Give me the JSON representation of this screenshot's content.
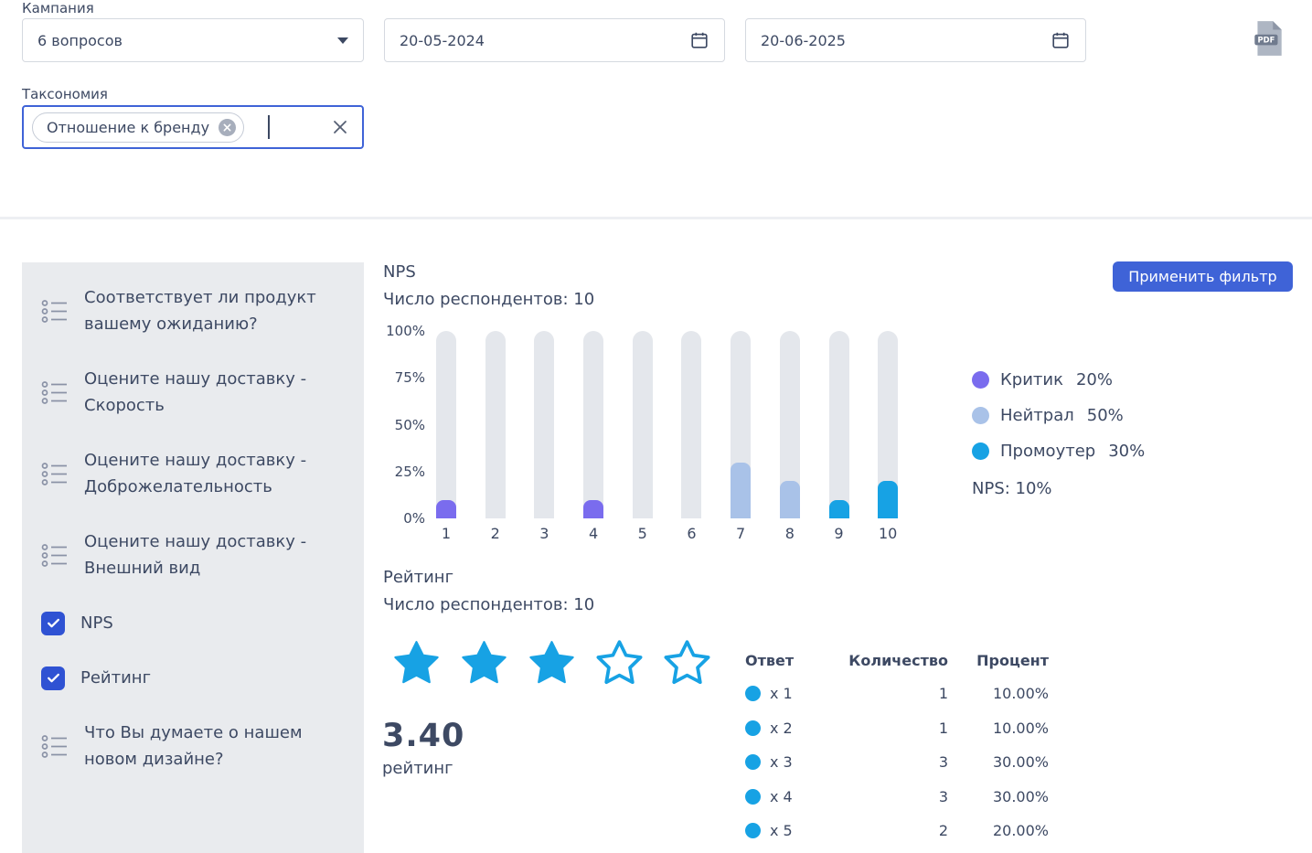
{
  "filters": {
    "campaign": {
      "label": "Кампания",
      "value": "6 вопросов"
    },
    "date_from": {
      "value": "20-05-2024"
    },
    "date_to": {
      "value": "20-06-2025"
    },
    "taxonomy": {
      "label": "Таксономия",
      "chip": "Отношение к бренду"
    }
  },
  "actions": {
    "apply_filter": "Применить фильтр"
  },
  "sidebar": {
    "items": [
      {
        "label": "Соответствует ли продукт вашему ожиданию?",
        "type": "list"
      },
      {
        "label": "Оцените нашу доставку - Скорость",
        "type": "list"
      },
      {
        "label": "Оцените нашу доставку - Доброжелательность",
        "type": "list"
      },
      {
        "label": "Оцените нашу доставку - Внешний вид",
        "type": "list"
      },
      {
        "label": "NPS",
        "type": "checkbox",
        "checked": true
      },
      {
        "label": "Рейтинг",
        "type": "checkbox",
        "checked": true
      },
      {
        "label": "Что Вы думаете о нашем новом дизайне?",
        "type": "list"
      }
    ]
  },
  "nps": {
    "title": "NPS",
    "respondents": "Число респондентов: 10",
    "legend": [
      {
        "label": "Критик",
        "value": "20%",
        "segment": "critic"
      },
      {
        "label": "Нейтрал",
        "value": "50%",
        "segment": "neutral"
      },
      {
        "label": "Промоутер",
        "value": "30%",
        "segment": "promoter"
      }
    ],
    "score": "NPS: 10%"
  },
  "rating": {
    "title": "Рейтинг",
    "respondents": "Число респондентов: 10",
    "stars": {
      "filled": 3,
      "total": 5
    },
    "average": "3.40",
    "average_label": "рейтинг",
    "table": {
      "headers": [
        "Ответ",
        "Количество",
        "Процент"
      ],
      "rows": [
        {
          "answer": "x 1",
          "count": "1",
          "percent": "10.00%"
        },
        {
          "answer": "x 2",
          "count": "1",
          "percent": "10.00%"
        },
        {
          "answer": "x 3",
          "count": "3",
          "percent": "30.00%"
        },
        {
          "answer": "x 4",
          "count": "3",
          "percent": "30.00%"
        },
        {
          "answer": "x 5",
          "count": "2",
          "percent": "20.00%"
        }
      ]
    }
  },
  "chart_data": {
    "type": "bar",
    "title": "NPS",
    "subtitle": "Число респондентов: 10",
    "categories": [
      "1",
      "2",
      "3",
      "4",
      "5",
      "6",
      "7",
      "8",
      "9",
      "10"
    ],
    "values": [
      10,
      0,
      0,
      10,
      0,
      0,
      30,
      20,
      10,
      20
    ],
    "segments": [
      "critic",
      "none",
      "none",
      "critic",
      "none",
      "none",
      "neutral",
      "neutral",
      "promoter",
      "promoter"
    ],
    "yticks": [
      "0%",
      "25%",
      "50%",
      "75%",
      "100%"
    ],
    "ylim": [
      0,
      100
    ],
    "legend_position": "right",
    "grid": false,
    "colors": {
      "critic": "#7a6cee",
      "neutral": "#a9c2e8",
      "promoter": "#17a2e4",
      "track": "#e4e7ec"
    }
  },
  "colors": {
    "accent_blue": "#3f63d7",
    "star_blue": "#17a2e4",
    "text": "#3d4963"
  }
}
